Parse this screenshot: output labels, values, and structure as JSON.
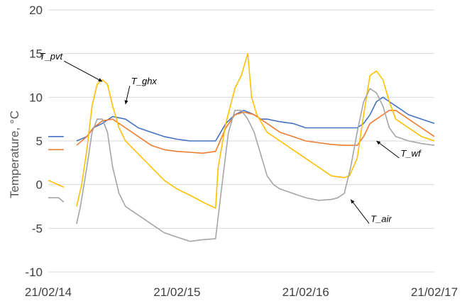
{
  "chart_data": {
    "type": "line",
    "title": "",
    "xlabel": "",
    "ylabel": "Temperature, °C",
    "ylim": [
      -10,
      20
    ],
    "yticks": [
      -10,
      -5,
      0,
      5,
      10,
      15,
      20
    ],
    "xlim": [
      0,
      3
    ],
    "xticks": [
      {
        "x": 0,
        "label": "21/02/14"
      },
      {
        "x": 1,
        "label": "21/02/15"
      },
      {
        "x": 2,
        "label": "21/02/16"
      },
      {
        "x": 3,
        "label": "21/02/17"
      }
    ],
    "grid": "horizontal",
    "legend": "none",
    "colors": {
      "T_pvt": "#FFC000",
      "T_ghx": "#4472C4",
      "T_wf": "#ED7D31",
      "T_air": "#A5A5A5"
    },
    "series": [
      {
        "name": "T_ghx",
        "x": [
          0.0,
          0.12,
          0.18,
          0.22,
          0.3,
          0.35,
          0.42,
          0.5,
          0.6,
          0.7,
          0.8,
          0.9,
          1.0,
          1.1,
          1.2,
          1.3,
          1.32,
          1.38,
          1.45,
          1.52,
          1.6,
          1.65,
          1.7,
          1.8,
          1.9,
          2.0,
          2.1,
          2.2,
          2.3,
          2.4,
          2.45,
          2.5,
          2.55,
          2.6,
          2.65,
          2.7,
          2.8,
          2.9,
          3.0
        ],
        "y": [
          5.5,
          5.5,
          null,
          5.0,
          5.5,
          6.5,
          7.0,
          7.8,
          7.5,
          6.5,
          6.0,
          5.5,
          5.2,
          5.0,
          5.0,
          5.0,
          5.5,
          7.0,
          8.0,
          8.5,
          8.0,
          7.5,
          7.5,
          7.2,
          7.0,
          6.5,
          6.5,
          6.5,
          6.5,
          6.5,
          7.0,
          8.0,
          9.5,
          10.0,
          9.5,
          9.0,
          8.0,
          7.5,
          7.0
        ]
      },
      {
        "name": "T_wf",
        "x": [
          0.0,
          0.12,
          0.18,
          0.22,
          0.3,
          0.35,
          0.42,
          0.5,
          0.6,
          0.7,
          0.8,
          0.9,
          1.0,
          1.1,
          1.2,
          1.3,
          1.32,
          1.38,
          1.45,
          1.52,
          1.6,
          1.65,
          1.7,
          1.8,
          1.9,
          2.0,
          2.1,
          2.2,
          2.3,
          2.4,
          2.45,
          2.5,
          2.55,
          2.6,
          2.65,
          2.7,
          2.8,
          2.9,
          3.0
        ],
        "y": [
          4.0,
          4.0,
          null,
          4.5,
          5.5,
          6.5,
          7.3,
          7.5,
          6.5,
          5.5,
          4.5,
          4.0,
          3.8,
          3.7,
          3.6,
          3.8,
          4.5,
          6.5,
          8.0,
          8.3,
          8.0,
          7.5,
          7.0,
          6.0,
          5.5,
          5.0,
          4.8,
          4.6,
          4.5,
          4.5,
          5.5,
          7.0,
          7.5,
          8.0,
          8.5,
          8.5,
          7.5,
          6.5,
          5.5
        ]
      },
      {
        "name": "T_pvt",
        "x": [
          0.0,
          0.12,
          0.18,
          0.22,
          0.26,
          0.3,
          0.34,
          0.38,
          0.42,
          0.46,
          0.5,
          0.55,
          0.6,
          0.7,
          0.8,
          0.9,
          1.0,
          1.1,
          1.2,
          1.3,
          1.32,
          1.38,
          1.45,
          1.5,
          1.55,
          1.58,
          1.62,
          1.66,
          1.7,
          1.8,
          1.9,
          2.0,
          2.1,
          2.2,
          2.3,
          2.34,
          2.4,
          2.45,
          2.5,
          2.55,
          2.6,
          2.65,
          2.7,
          2.8,
          2.9,
          3.0
        ],
        "y": [
          0.5,
          -0.3,
          null,
          -2.5,
          0.0,
          4.0,
          9.0,
          11.5,
          12.0,
          11.5,
          9.0,
          6.5,
          5.0,
          3.5,
          2.0,
          0.5,
          -0.5,
          -1.2,
          -2.0,
          -2.7,
          2.0,
          7.0,
          11.0,
          12.5,
          15.0,
          10.0,
          8.0,
          7.0,
          6.0,
          5.0,
          4.0,
          3.0,
          2.0,
          1.0,
          0.8,
          1.0,
          3.0,
          8.0,
          12.5,
          13.0,
          12.0,
          9.5,
          7.5,
          6.5,
          5.5,
          5.0
        ]
      },
      {
        "name": "T_air",
        "x": [
          0.0,
          0.08,
          0.12,
          0.18,
          0.22,
          0.25,
          0.3,
          0.34,
          0.38,
          0.42,
          0.46,
          0.5,
          0.55,
          0.6,
          0.65,
          0.7,
          0.8,
          0.9,
          1.0,
          1.1,
          1.2,
          1.3,
          1.35,
          1.4,
          1.45,
          1.5,
          1.55,
          1.6,
          1.65,
          1.7,
          1.75,
          1.8,
          1.9,
          2.0,
          2.1,
          2.2,
          2.25,
          2.3,
          2.35,
          2.4,
          2.45,
          2.5,
          2.55,
          2.6,
          2.65,
          2.7,
          2.8,
          2.9,
          3.0
        ],
        "y": [
          -1.5,
          -1.5,
          -2.0,
          null,
          -4.5,
          -2.5,
          2.0,
          6.0,
          7.5,
          7.5,
          6.0,
          2.0,
          -1.0,
          -2.5,
          -3.0,
          -3.5,
          -4.5,
          -5.5,
          -6.0,
          -6.5,
          -6.3,
          -6.2,
          0.0,
          6.0,
          8.5,
          8.5,
          7.5,
          6.0,
          3.5,
          1.0,
          0.0,
          -0.5,
          -1.0,
          -1.5,
          -1.8,
          -1.7,
          -1.5,
          -1.0,
          2.0,
          6.0,
          9.5,
          11.0,
          10.5,
          9.0,
          6.5,
          5.5,
          5.0,
          4.7,
          4.5
        ]
      }
    ],
    "annotations": [
      {
        "text": "T_pvt",
        "target_series": "T_pvt",
        "target": {
          "x": 0.42,
          "y": 11.8
        }
      },
      {
        "text": "T_ghx",
        "target_series": "T_ghx",
        "target": {
          "x": 0.6,
          "y": 9.2
        }
      },
      {
        "text": "T_wf",
        "target_series": "T_wf",
        "target": {
          "x": 2.55,
          "y": 5.0
        }
      },
      {
        "text": "T_air",
        "target_series": "T_air",
        "target": {
          "x": 2.35,
          "y": -1.7
        }
      }
    ]
  }
}
